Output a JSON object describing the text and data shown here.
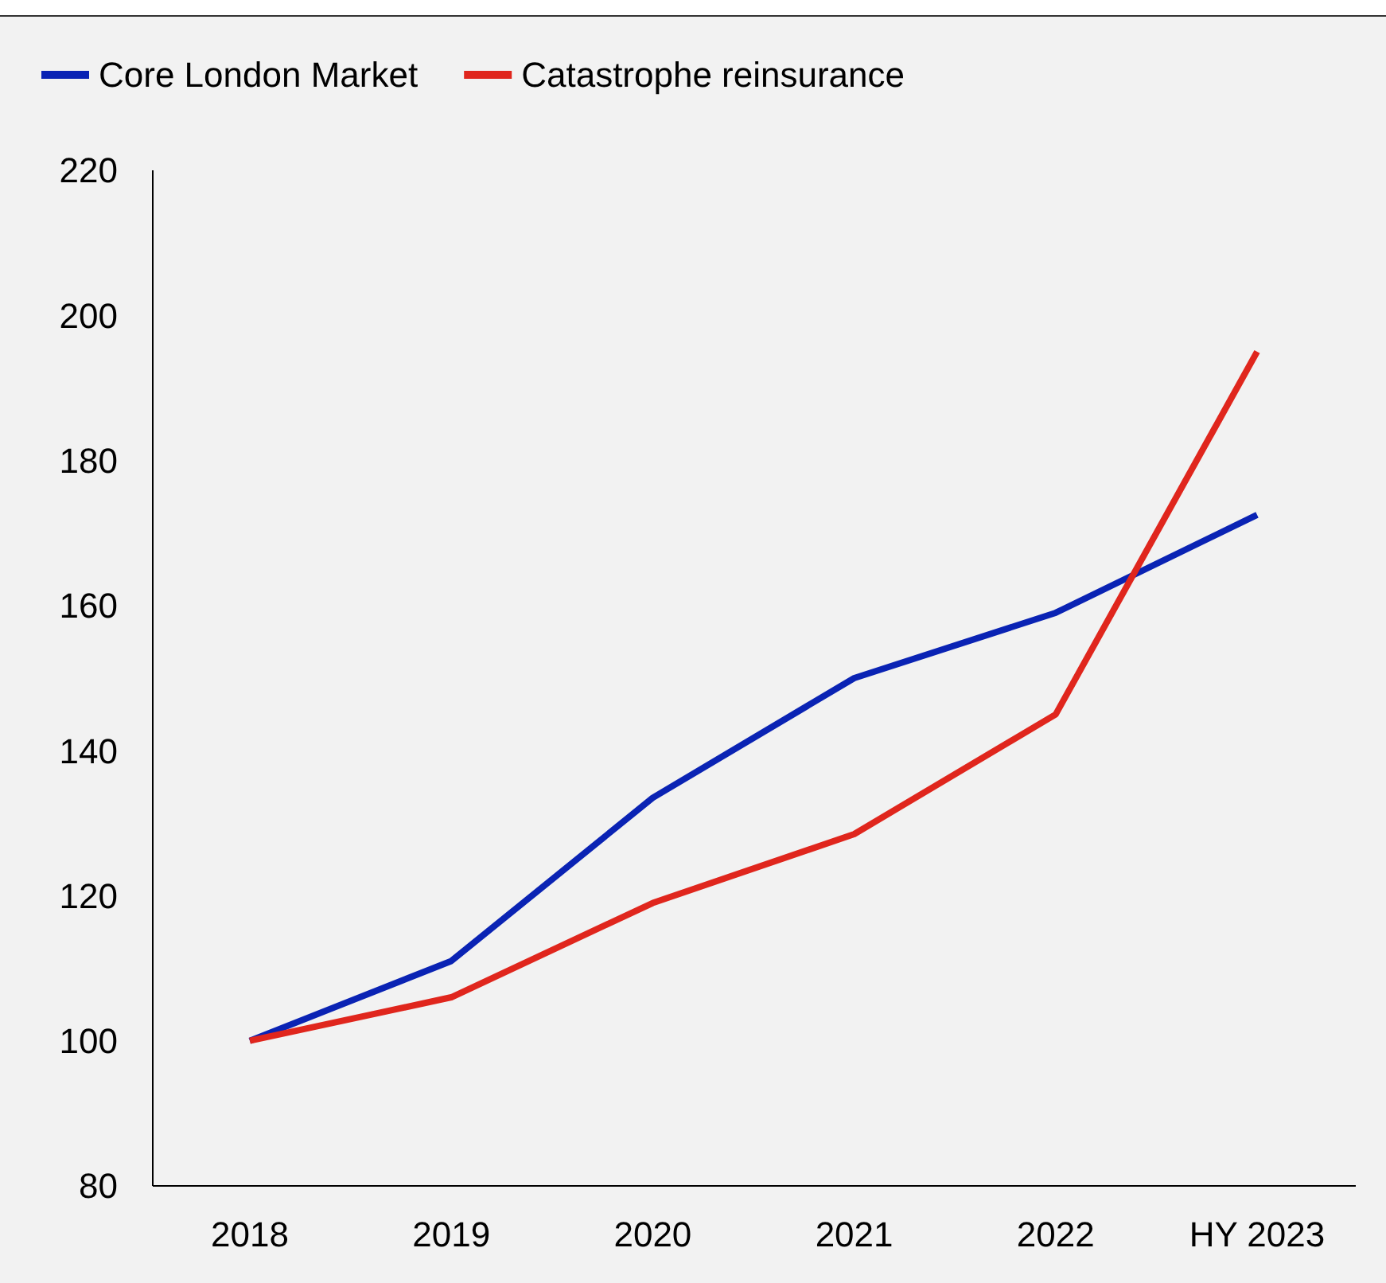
{
  "chart_data": {
    "type": "line",
    "categories": [
      "2018",
      "2019",
      "2020",
      "2021",
      "2022",
      "HY 2023"
    ],
    "series": [
      {
        "name": "Core London Market",
        "color": "#0a23b4",
        "values": [
          100,
          111,
          133.5,
          150,
          159,
          172.5
        ]
      },
      {
        "name": "Catastrophe reinsurance",
        "color": "#e0261d",
        "values": [
          100,
          106,
          119,
          128.5,
          145,
          195
        ]
      }
    ],
    "ylim": [
      80,
      220
    ],
    "yticks": [
      80,
      100,
      120,
      140,
      160,
      180,
      200,
      220
    ],
    "grid": false,
    "legend": "top left",
    "marker": "none",
    "line_style": "solid"
  }
}
